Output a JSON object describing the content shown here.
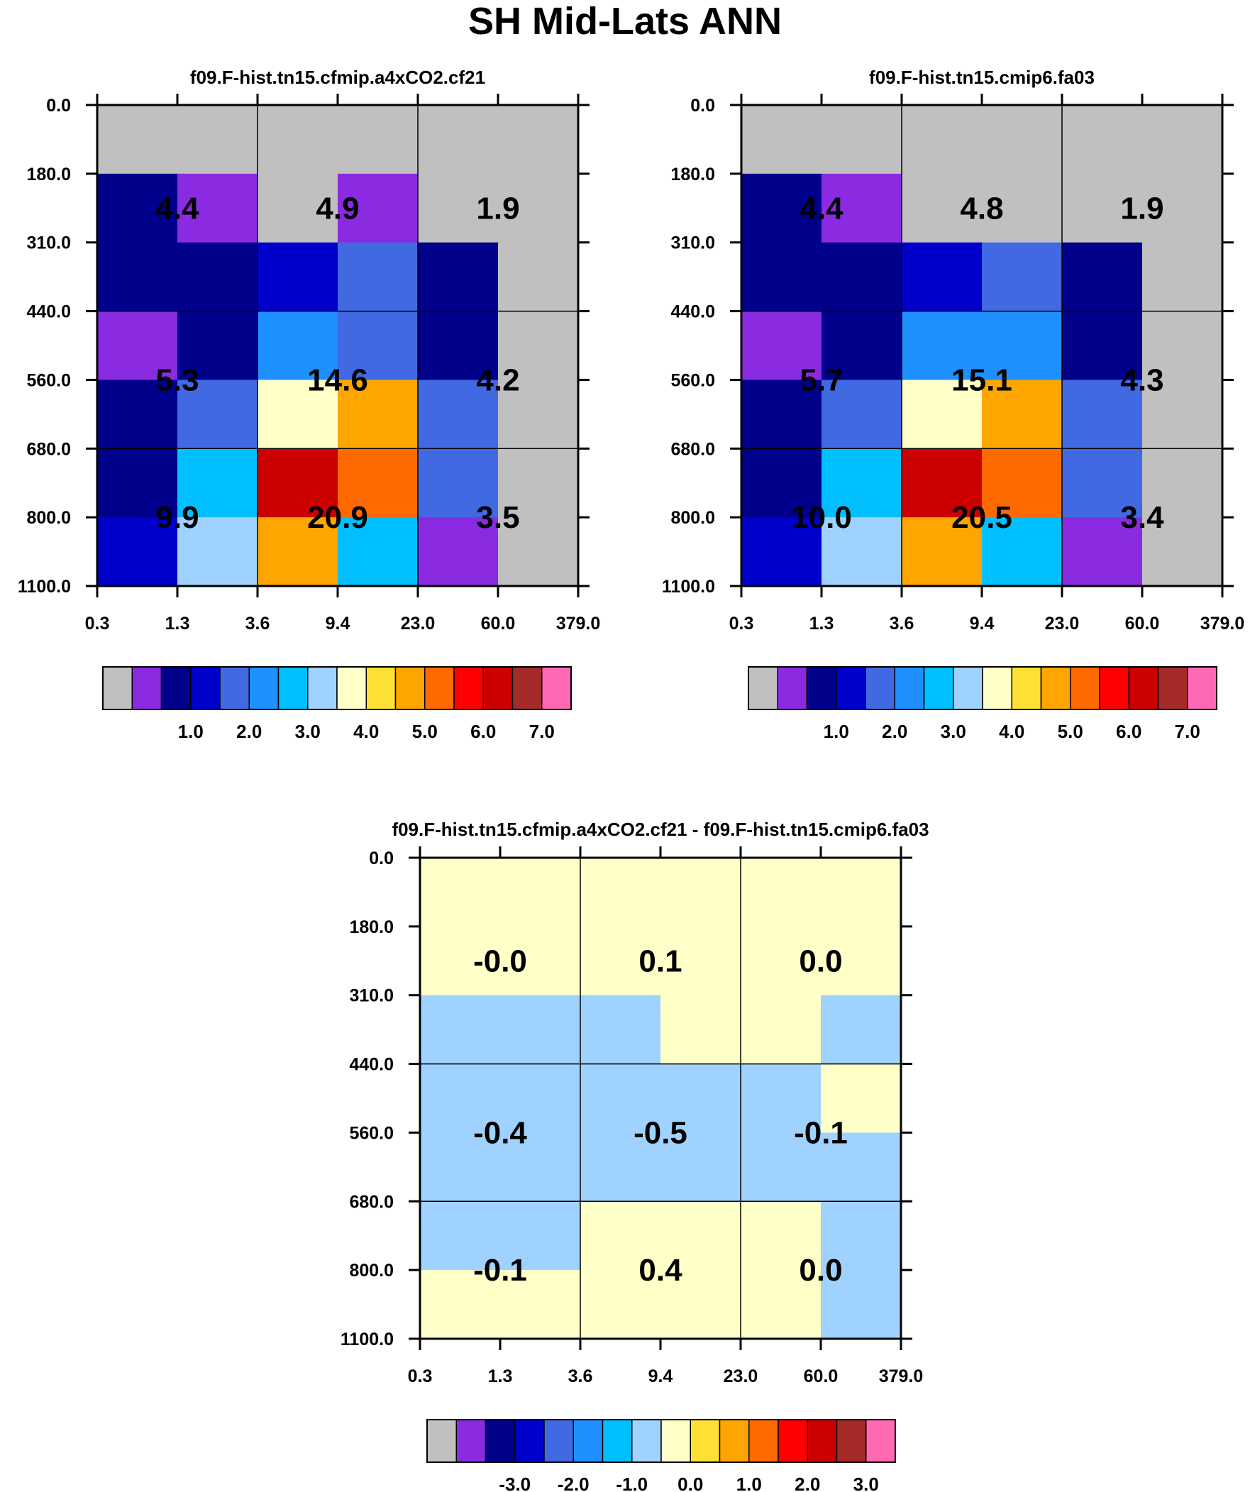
{
  "title": "SH Mid-Lats ANN",
  "colors": {
    "bins": [
      "#c0c0c0",
      "#8a2be2",
      "#00008b",
      "#0000cd",
      "#4169e1",
      "#1e90ff",
      "#00bfff",
      "#a0d2ff",
      "#ffffc8",
      "#ffe135",
      "#ffa500",
      "#ff6a00",
      "#ff0000",
      "#cd0000",
      "#a52a2a",
      "#ff69b4"
    ]
  },
  "chart_data": [
    {
      "type": "heatmap",
      "title": "f09.F-hist.tn15.cfmip.a4xCO2.cf21",
      "x_ticks": [
        "0.3",
        "1.3",
        "3.6",
        "9.4",
        "23.0",
        "60.0",
        "379.0"
      ],
      "y_ticks": [
        "0.0",
        "180.0",
        "310.0",
        "440.0",
        "560.0",
        "680.0",
        "800.0",
        "1100.0"
      ],
      "cell_bins": [
        [
          0,
          0,
          0,
          0,
          0,
          0
        ],
        [
          2,
          1,
          0,
          1,
          0,
          0
        ],
        [
          2,
          2,
          3,
          4,
          2,
          0
        ],
        [
          1,
          2,
          5,
          4,
          2,
          0
        ],
        [
          2,
          4,
          8,
          10,
          4,
          0
        ],
        [
          2,
          6,
          13,
          11,
          4,
          0
        ],
        [
          3,
          7,
          10,
          6,
          1,
          0
        ]
      ],
      "block_values": [
        [
          "4.4",
          "4.9",
          "1.9"
        ],
        [
          "5.3",
          "14.6",
          "4.2"
        ],
        [
          "9.9",
          "20.9",
          "3.5"
        ]
      ],
      "colorbar": {
        "labels": [
          "1.0",
          "2.0",
          "3.0",
          "4.0",
          "5.0",
          "6.0",
          "7.0"
        ]
      }
    },
    {
      "type": "heatmap",
      "title": "f09.F-hist.tn15.cmip6.fa03",
      "x_ticks": [
        "0.3",
        "1.3",
        "3.6",
        "9.4",
        "23.0",
        "60.0",
        "379.0"
      ],
      "y_ticks": [
        "0.0",
        "180.0",
        "310.0",
        "440.0",
        "560.0",
        "680.0",
        "800.0",
        "1100.0"
      ],
      "cell_bins": [
        [
          0,
          0,
          0,
          0,
          0,
          0
        ],
        [
          2,
          1,
          0,
          0,
          0,
          0
        ],
        [
          2,
          2,
          3,
          4,
          2,
          0
        ],
        [
          1,
          2,
          5,
          5,
          2,
          0
        ],
        [
          2,
          4,
          8,
          10,
          4,
          0
        ],
        [
          2,
          6,
          13,
          11,
          4,
          0
        ],
        [
          3,
          7,
          10,
          6,
          1,
          0
        ]
      ],
      "block_values": [
        [
          "4.4",
          "4.8",
          "1.9"
        ],
        [
          "5.7",
          "15.1",
          "4.3"
        ],
        [
          "10.0",
          "20.5",
          "3.4"
        ]
      ],
      "colorbar": {
        "labels": [
          "1.0",
          "2.0",
          "3.0",
          "4.0",
          "5.0",
          "6.0",
          "7.0"
        ]
      }
    },
    {
      "type": "heatmap",
      "title": "f09.F-hist.tn15.cfmip.a4xCO2.cf21 - f09.F-hist.tn15.cmip6.fa03",
      "x_ticks": [
        "0.3",
        "1.3",
        "3.6",
        "9.4",
        "23.0",
        "60.0",
        "379.0"
      ],
      "y_ticks": [
        "0.0",
        "180.0",
        "310.0",
        "440.0",
        "560.0",
        "680.0",
        "800.0",
        "1100.0"
      ],
      "cell_bins": [
        [
          8,
          8,
          8,
          8,
          8,
          8
        ],
        [
          8,
          8,
          8,
          8,
          8,
          8
        ],
        [
          7,
          7,
          7,
          8,
          8,
          7
        ],
        [
          7,
          7,
          7,
          7,
          7,
          8
        ],
        [
          7,
          7,
          7,
          7,
          7,
          7
        ],
        [
          7,
          7,
          8,
          8,
          8,
          7
        ],
        [
          8,
          8,
          8,
          8,
          8,
          7
        ]
      ],
      "block_values": [
        [
          "-0.0",
          "0.1",
          "0.0"
        ],
        [
          "-0.4",
          "-0.5",
          "-0.1"
        ],
        [
          "-0.1",
          "0.4",
          "0.0"
        ]
      ],
      "colorbar": {
        "labels": [
          "-3.0",
          "-2.0",
          "-1.0",
          "0.0",
          "1.0",
          "2.0",
          "3.0"
        ]
      }
    }
  ]
}
